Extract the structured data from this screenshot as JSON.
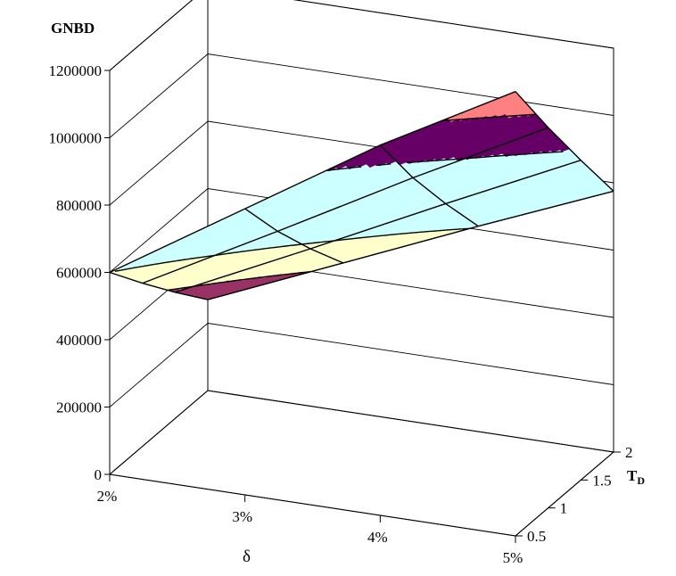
{
  "chart_data": {
    "type": "surface",
    "zlabel": "GNBD",
    "xlabel": "δ",
    "ylabel": "T",
    "ylabel_subscript": "D",
    "x_ticks": [
      "2%",
      "3%",
      "4%",
      "5%"
    ],
    "y_ticks": [
      "0.5",
      "1",
      "1.5",
      "2"
    ],
    "z_ticks": [
      "0",
      "200000",
      "400000",
      "600000",
      "800000",
      "1000000",
      "1200000"
    ],
    "zlim": [
      0,
      1200000
    ],
    "grid": true,
    "x": [
      0.02,
      0.03,
      0.04,
      0.05
    ],
    "y": [
      0.5,
      1.0,
      1.5,
      2.0
    ],
    "z": [
      [
        600000,
        850000,
        1100000,
        1320000
      ],
      [
        485000,
        700000,
        920000,
        1130000
      ],
      [
        375000,
        565000,
        760000,
        950000
      ],
      [
        270000,
        440000,
        610000,
        775000
      ]
    ],
    "bands": [
      {
        "from": 0,
        "to": 200000,
        "color": "#993366"
      },
      {
        "from": 200000,
        "to": 400000,
        "color": "#993366"
      },
      {
        "from": 400000,
        "to": 600000,
        "color": "#FFFFCC"
      },
      {
        "from": 600000,
        "to": 800000,
        "color": "#CCFFFF"
      },
      {
        "from": 800000,
        "to": 1000000,
        "color": "#CCFFFF"
      },
      {
        "from": 1000000,
        "to": 1200000,
        "color": "#660066"
      },
      {
        "from": 1200000,
        "to": 1400000,
        "color": "#FF8080"
      }
    ]
  }
}
